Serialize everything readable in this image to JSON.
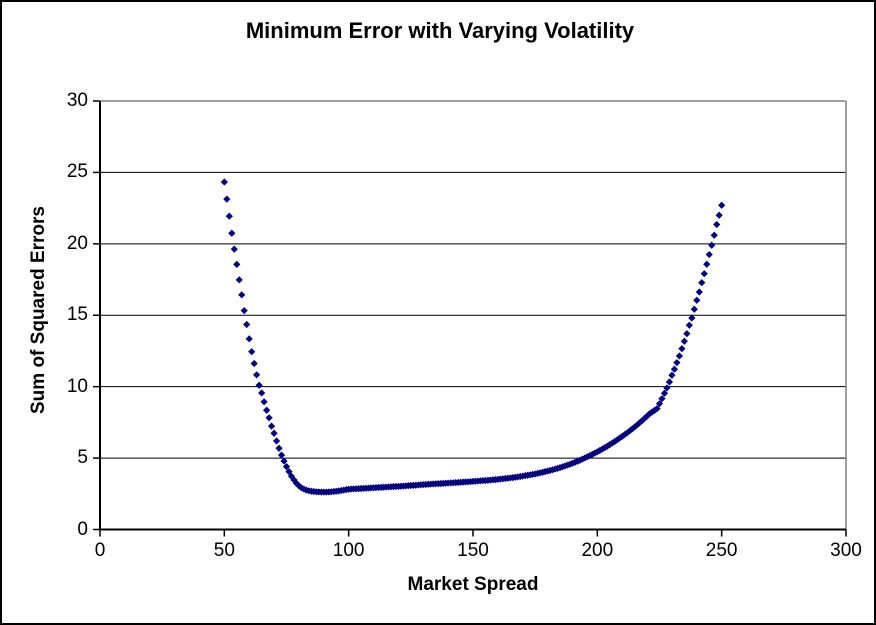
{
  "chart": {
    "title": "Minimum Error with Varying Volatility",
    "x_axis_title": "Market Spread",
    "y_axis_title": "Sum of Squared Errors",
    "colors": {
      "marker": "#000080",
      "gridline": "#000000",
      "frame": "#808080",
      "axis": "#000000",
      "background": "#ffffff",
      "text": "#000000"
    }
  },
  "chart_data": {
    "type": "scatter",
    "title": "Minimum Error with Varying Volatility",
    "xlabel": "Market Spread",
    "ylabel": "Sum of Squared Errors",
    "xlim": [
      0,
      300
    ],
    "ylim": [
      0,
      30
    ],
    "x_ticks": [
      0,
      50,
      100,
      150,
      200,
      250,
      300
    ],
    "y_ticks": [
      0,
      5,
      10,
      15,
      20,
      25,
      30
    ],
    "grid": "horizontal major gridlines every 5 units",
    "legend": "none",
    "marker": "diamond",
    "x_step": 1,
    "series": [
      {
        "name": "Sum of Squared Errors vs Market Spread",
        "color": "#000080",
        "points": [
          [
            50,
            24.33
          ],
          [
            51,
            23.13
          ],
          [
            52,
            21.93
          ],
          [
            53,
            20.74
          ],
          [
            54,
            19.63
          ],
          [
            55,
            18.56
          ],
          [
            56,
            17.48
          ],
          [
            57,
            16.43
          ],
          [
            58,
            15.32
          ],
          [
            59,
            14.35
          ],
          [
            60,
            13.35
          ],
          [
            61,
            12.45
          ],
          [
            62,
            11.62
          ],
          [
            63,
            10.83
          ],
          [
            64,
            10.1
          ],
          [
            65,
            9.56
          ],
          [
            66,
            8.94
          ],
          [
            67,
            8.35
          ],
          [
            68,
            7.82
          ],
          [
            69,
            7.24
          ],
          [
            70,
            6.74
          ],
          [
            71,
            6.2
          ],
          [
            72,
            5.69
          ],
          [
            73,
            5.21
          ],
          [
            74,
            4.79
          ],
          [
            75,
            4.4
          ],
          [
            76,
            4.05
          ],
          [
            77,
            3.73
          ],
          [
            78,
            3.47
          ],
          [
            79,
            3.24
          ],
          [
            80,
            3.06
          ],
          [
            81,
            2.92
          ],
          [
            82,
            2.83
          ],
          [
            83,
            2.76
          ],
          [
            84,
            2.71
          ],
          [
            85,
            2.68
          ],
          [
            86,
            2.66
          ],
          [
            87,
            2.64
          ],
          [
            88,
            2.63
          ],
          [
            89,
            2.62
          ],
          [
            90,
            2.62
          ],
          [
            91,
            2.62
          ],
          [
            92,
            2.63
          ],
          [
            93,
            2.64
          ],
          [
            94,
            2.66
          ],
          [
            95,
            2.68
          ],
          [
            96,
            2.7
          ],
          [
            97,
            2.73
          ],
          [
            98,
            2.76
          ],
          [
            99,
            2.79
          ],
          [
            100,
            2.82
          ],
          [
            101,
            2.83
          ],
          [
            102,
            2.84
          ],
          [
            103,
            2.85
          ],
          [
            104,
            2.86
          ],
          [
            105,
            2.87
          ],
          [
            106,
            2.88
          ],
          [
            107,
            2.89
          ],
          [
            108,
            2.9
          ],
          [
            109,
            2.91
          ],
          [
            110,
            2.92
          ],
          [
            111,
            2.93
          ],
          [
            112,
            2.94
          ],
          [
            113,
            2.95
          ],
          [
            114,
            2.96
          ],
          [
            115,
            2.97
          ],
          [
            116,
            2.98
          ],
          [
            117,
            2.99
          ],
          [
            118,
            3.0
          ],
          [
            119,
            3.01
          ],
          [
            120,
            3.02
          ],
          [
            121,
            3.03
          ],
          [
            122,
            3.04
          ],
          [
            123,
            3.05
          ],
          [
            124,
            3.07
          ],
          [
            125,
            3.08
          ],
          [
            126,
            3.09
          ],
          [
            127,
            3.1
          ],
          [
            128,
            3.12
          ],
          [
            129,
            3.13
          ],
          [
            130,
            3.14
          ],
          [
            131,
            3.15
          ],
          [
            132,
            3.17
          ],
          [
            133,
            3.18
          ],
          [
            134,
            3.19
          ],
          [
            135,
            3.2
          ],
          [
            136,
            3.21
          ],
          [
            137,
            3.22
          ],
          [
            138,
            3.23
          ],
          [
            139,
            3.24
          ],
          [
            140,
            3.25
          ],
          [
            141,
            3.26
          ],
          [
            142,
            3.27
          ],
          [
            143,
            3.28
          ],
          [
            144,
            3.29
          ],
          [
            145,
            3.31
          ],
          [
            146,
            3.32
          ],
          [
            147,
            3.33
          ],
          [
            148,
            3.34
          ],
          [
            149,
            3.35
          ],
          [
            150,
            3.37
          ],
          [
            151,
            3.38
          ],
          [
            152,
            3.39
          ],
          [
            153,
            3.41
          ],
          [
            154,
            3.42
          ],
          [
            155,
            3.43
          ],
          [
            156,
            3.45
          ],
          [
            157,
            3.46
          ],
          [
            158,
            3.48
          ],
          [
            159,
            3.49
          ],
          [
            160,
            3.51
          ],
          [
            161,
            3.53
          ],
          [
            162,
            3.55
          ],
          [
            163,
            3.57
          ],
          [
            164,
            3.59
          ],
          [
            165,
            3.61
          ],
          [
            166,
            3.63
          ],
          [
            167,
            3.66
          ],
          [
            168,
            3.68
          ],
          [
            169,
            3.71
          ],
          [
            170,
            3.74
          ],
          [
            171,
            3.77
          ],
          [
            172,
            3.8
          ],
          [
            173,
            3.83
          ],
          [
            174,
            3.86
          ],
          [
            175,
            3.89
          ],
          [
            176,
            3.93
          ],
          [
            177,
            3.97
          ],
          [
            178,
            4.01
          ],
          [
            179,
            4.05
          ],
          [
            180,
            4.09
          ],
          [
            181,
            4.13
          ],
          [
            182,
            4.18
          ],
          [
            183,
            4.23
          ],
          [
            184,
            4.28
          ],
          [
            185,
            4.33
          ],
          [
            186,
            4.39
          ],
          [
            187,
            4.45
          ],
          [
            188,
            4.51
          ],
          [
            189,
            4.57
          ],
          [
            190,
            4.64
          ],
          [
            191,
            4.71
          ],
          [
            192,
            4.78
          ],
          [
            193,
            4.85
          ],
          [
            194,
            4.93
          ],
          [
            195,
            5.01
          ],
          [
            196,
            5.09
          ],
          [
            197,
            5.17
          ],
          [
            198,
            5.26
          ],
          [
            199,
            5.35
          ],
          [
            200,
            5.44
          ],
          [
            201,
            5.53
          ],
          [
            202,
            5.63
          ],
          [
            203,
            5.73
          ],
          [
            204,
            5.83
          ],
          [
            205,
            5.94
          ],
          [
            206,
            6.05
          ],
          [
            207,
            6.16
          ],
          [
            208,
            6.28
          ],
          [
            209,
            6.4
          ],
          [
            210,
            6.52
          ],
          [
            211,
            6.64
          ],
          [
            212,
            6.77
          ],
          [
            213,
            6.9
          ],
          [
            214,
            7.04
          ],
          [
            215,
            7.18
          ],
          [
            216,
            7.32
          ],
          [
            217,
            7.47
          ],
          [
            218,
            7.62
          ],
          [
            219,
            7.78
          ],
          [
            220,
            7.94
          ],
          [
            221,
            8.1
          ],
          [
            222,
            8.22
          ],
          [
            223,
            8.34
          ],
          [
            224,
            8.46
          ],
          [
            225,
            8.81
          ],
          [
            226,
            9.16
          ],
          [
            227,
            9.54
          ],
          [
            228,
            9.91
          ],
          [
            229,
            10.33
          ],
          [
            230,
            10.8
          ],
          [
            231,
            11.22
          ],
          [
            232,
            11.68
          ],
          [
            233,
            12.15
          ],
          [
            234,
            12.66
          ],
          [
            235,
            13.18
          ],
          [
            236,
            13.71
          ],
          [
            237,
            14.3
          ],
          [
            238,
            14.81
          ],
          [
            239,
            15.42
          ],
          [
            240,
            16.05
          ],
          [
            241,
            16.63
          ],
          [
            242,
            17.28
          ],
          [
            243,
            17.91
          ],
          [
            244,
            18.57
          ],
          [
            245,
            19.25
          ],
          [
            246,
            19.9
          ],
          [
            247,
            20.6
          ],
          [
            248,
            21.35
          ],
          [
            249,
            22.0
          ],
          [
            250,
            22.7
          ]
        ]
      }
    ]
  }
}
